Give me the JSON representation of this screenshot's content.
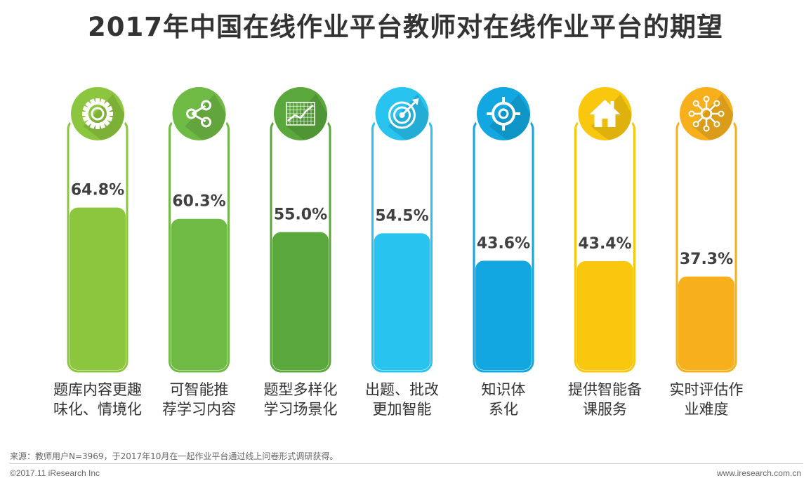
{
  "chart_data": {
    "type": "bar",
    "title": "2017年中国在线作业平台教师对在线作业平台的期望",
    "categories": [
      [
        "题库内容更趣",
        "味化、情境化"
      ],
      [
        "可智能推",
        "荐学习内容"
      ],
      [
        "题型多样化",
        "学习场景化"
      ],
      [
        "出题、批改",
        "更加智能"
      ],
      [
        "知识体",
        "系化"
      ],
      [
        "提供智能备",
        "课服务"
      ],
      [
        "实时评估作",
        "业难度"
      ]
    ],
    "values": [
      64.8,
      60.3,
      55.0,
      54.5,
      43.6,
      43.4,
      37.3
    ],
    "data_labels": [
      "64.8%",
      "60.3%",
      "55.0%",
      "54.5%",
      "43.6%",
      "43.4%",
      "37.3%"
    ],
    "colors": [
      "#8cc63f",
      "#6fba44",
      "#5aa83c",
      "#29c3ef",
      "#12a7e0",
      "#f9c80e",
      "#f7b01c"
    ],
    "icons": [
      "gear-icon",
      "share-icon",
      "grid-chart-icon",
      "target-arrow-icon",
      "crosshair-icon",
      "house-icon",
      "network-icon"
    ],
    "ylim": [
      0,
      100
    ]
  },
  "footer": {
    "source": "来源：教师用户N=3969，于2017年10月在一起作业平台通过线上问卷形式调研获得。",
    "copyright": "©2017.11 iResearch Inc",
    "website": "www.iresearch.com.cn"
  }
}
